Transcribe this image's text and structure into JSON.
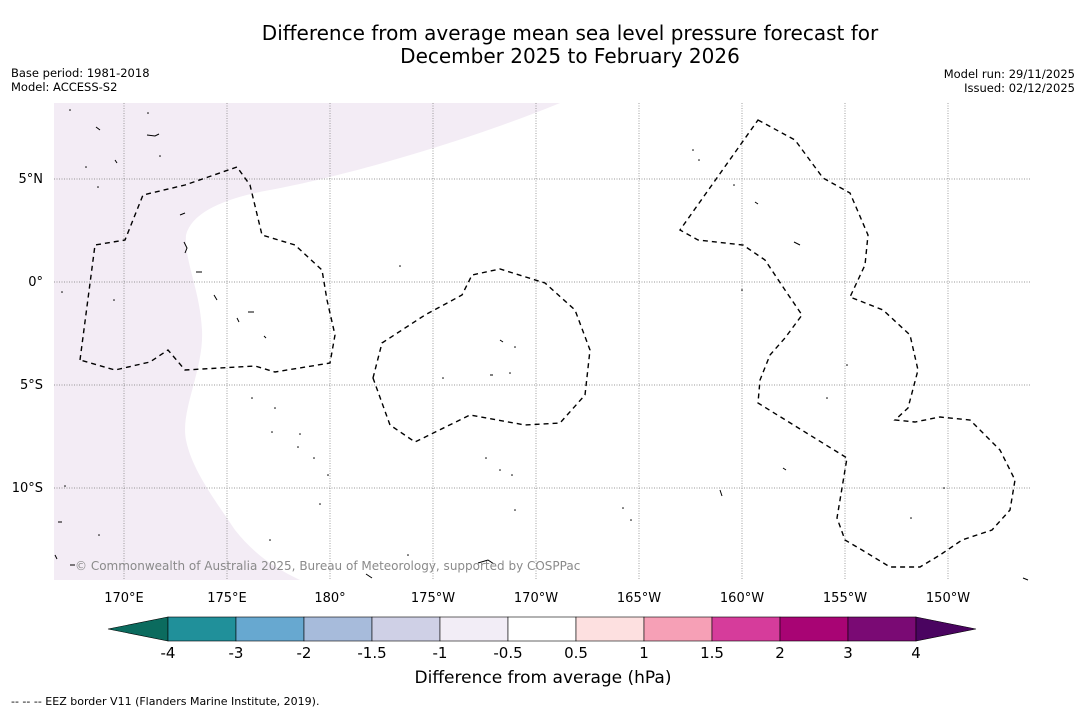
{
  "title": {
    "line1": "Difference from average mean sea level pressure forecast for",
    "line2": "December 2025 to February 2026"
  },
  "meta": {
    "base_period": "Base period: 1981-2018",
    "model": "Model: ACCESS-S2",
    "model_run": "Model run: 29/11/2025",
    "issued": "Issued: 02/12/2025"
  },
  "map": {
    "lat_labels": [
      "5°N",
      "0°",
      "5°S",
      "10°S"
    ],
    "lon_labels": [
      "170°E",
      "175°E",
      "180°",
      "175°W",
      "170°W",
      "165°W",
      "160°W",
      "155°W",
      "150°W"
    ],
    "copyright": "© Commonwealth of Australia 2025, Bureau of Meteorology, supported by COSPPac",
    "shading_color": "#f3ecf5"
  },
  "colorbar": {
    "ticks": [
      "-4",
      "-3",
      "-2",
      "-1.5",
      "-1",
      "-0.5",
      "0.5",
      "1",
      "1.5",
      "2",
      "3",
      "4"
    ],
    "colors": [
      "#0b6b5e",
      "#20909a",
      "#67a8d0",
      "#a7bbdb",
      "#cfd0e6",
      "#f2edf6",
      "#ffffff",
      "#fde0e0",
      "#f6a0b6",
      "#d63c9b",
      "#a80474",
      "#7a0a74",
      "#4a0460"
    ],
    "label": "Difference from average (hPa)"
  },
  "footnote": "--  --  -- EEZ border V11 (Flanders Marine Institute, 2019)."
}
